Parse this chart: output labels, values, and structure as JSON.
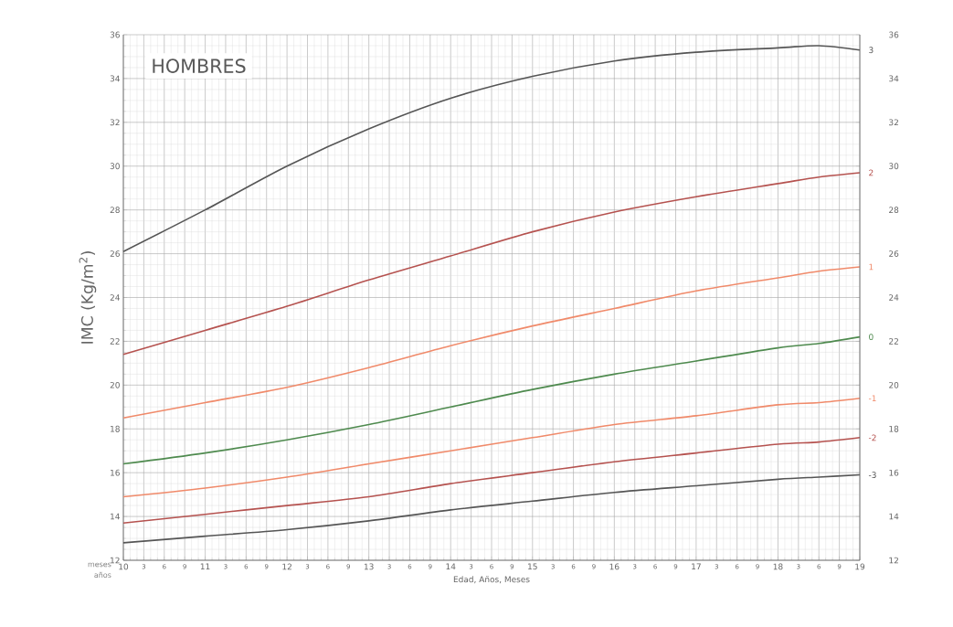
{
  "chart_data": {
    "type": "line",
    "title": "HOMBRES",
    "xlabel": "Edad, Años, Meses",
    "ylabel": "IMC (Kg/m$^{2}$)",
    "annotations": [
      "meses",
      "años",
      "3",
      "6",
      "9",
      "3",
      "6",
      "9",
      "3",
      "6",
      "9",
      "3",
      "6",
      "9",
      "3",
      "6",
      "9",
      "3",
      "6",
      "9",
      "3",
      "6",
      "9",
      "3",
      "6",
      "9",
      "3",
      "6",
      "9"
    ],
    "x": [
      10,
      11,
      12,
      13,
      14,
      15,
      16,
      17,
      18,
      18.5,
      19
    ],
    "series": [
      {
        "name": "3",
        "color": "#555555",
        "values": [
          26.1,
          28.0,
          30.0,
          31.7,
          33.1,
          34.1,
          34.8,
          35.2,
          35.4,
          35.5,
          35.3
        ]
      },
      {
        "name": "2",
        "color": "#b5524f",
        "values": [
          21.4,
          22.5,
          23.6,
          24.8,
          25.9,
          27.0,
          27.9,
          28.6,
          29.2,
          29.5,
          29.7
        ]
      },
      {
        "name": "1",
        "color": "#f08a6a",
        "values": [
          18.5,
          19.2,
          19.9,
          20.8,
          21.8,
          22.7,
          23.5,
          24.3,
          24.9,
          25.2,
          25.4
        ]
      },
      {
        "name": "0",
        "color": "#4e8a4e",
        "values": [
          16.4,
          16.9,
          17.5,
          18.2,
          19.0,
          19.8,
          20.5,
          21.1,
          21.7,
          21.9,
          22.2
        ]
      },
      {
        "name": "-1",
        "color": "#f08a6a",
        "values": [
          14.9,
          15.3,
          15.8,
          16.4,
          17.0,
          17.6,
          18.2,
          18.6,
          19.1,
          19.2,
          19.4
        ]
      },
      {
        "name": "-2",
        "color": "#b5524f",
        "values": [
          13.7,
          14.1,
          14.5,
          14.9,
          15.5,
          16.0,
          16.5,
          16.9,
          17.3,
          17.4,
          17.6
        ]
      },
      {
        "name": "-3",
        "color": "#555555",
        "values": [
          12.8,
          13.1,
          13.4,
          13.8,
          14.3,
          14.7,
          15.1,
          15.4,
          15.7,
          15.8,
          15.9
        ]
      }
    ],
    "xlim": [
      10,
      19
    ],
    "ylim": [
      12,
      36
    ],
    "xticks": [
      10,
      {
        "value": 10.25,
        "label": null
      },
      {
        "value": 10.5,
        "label": null
      },
      {
        "value": 10.75,
        "label": null
      },
      11,
      {
        "value": 11.25,
        "label": null
      },
      {
        "value": 11.5,
        "label": null
      },
      {
        "value": 11.75,
        "label": null
      },
      12,
      {
        "value": 12.25,
        "label": null
      },
      {
        "value": 12.5,
        "label": null
      },
      {
        "value": 12.75,
        "label": null
      },
      13,
      {
        "value": 13.25,
        "label": null
      },
      {
        "value": 13.5,
        "label": null
      },
      {
        "value": 13.75,
        "label": null
      },
      14,
      {
        "value": 14.25,
        "label": null
      },
      {
        "value": 14.5,
        "label": null
      },
      {
        "value": 14.75,
        "label": null
      },
      15,
      {
        "value": 15.25,
        "label": null
      },
      {
        "value": 15.5,
        "label": null
      },
      {
        "value": 15.75,
        "label": null
      },
      16,
      {
        "value": 16.25,
        "label": null
      },
      {
        "value": 16.5,
        "label": null
      },
      {
        "value": 16.75,
        "label": null
      },
      17,
      {
        "value": 17.25,
        "label": null
      },
      {
        "value": 17.5,
        "label": null
      },
      {
        "value": 17.75,
        "label": null
      },
      18,
      {
        "value": 18.25,
        "label": null
      },
      {
        "value": 18.5,
        "label": null
      },
      {
        "value": 18.75,
        "label": null
      },
      19
    ],
    "yticks": [
      12,
      14,
      16,
      18,
      20,
      22,
      24,
      26,
      28,
      30,
      32,
      34,
      36
    ],
    "y2lim": [
      12,
      36
    ],
    "y2ticks": [
      12,
      14,
      16,
      18,
      20,
      22,
      24,
      26,
      28,
      30,
      32,
      34,
      36
    ],
    "grid": true,
    "marker": "none",
    "line_style": "solid"
  }
}
